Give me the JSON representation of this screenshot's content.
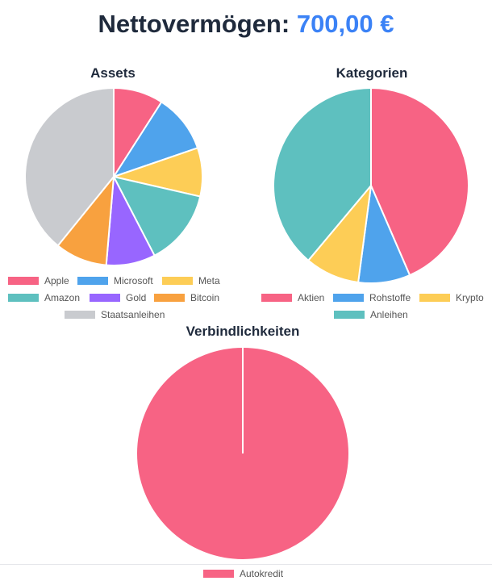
{
  "header": {
    "label": "Nettovermögen:",
    "value": "700,00 €"
  },
  "chart_data": [
    {
      "type": "pie",
      "title": "Assets",
      "legend_position": "bottom",
      "labels": [
        "Apple",
        "Microsoft",
        "Meta",
        "Amazon",
        "Gold",
        "Bitcoin",
        "Staatsanleihen"
      ],
      "values": [
        8.4,
        9.9,
        8.2,
        12.8,
        8.3,
        8.8,
        36.3
      ],
      "colors": [
        "#f76384",
        "#4fa3ec",
        "#fdcd56",
        "#5ec0bf",
        "#9866ff",
        "#f8a13f",
        "#c9cbcf"
      ]
    },
    {
      "type": "pie",
      "title": "Kategorien",
      "legend_position": "bottom",
      "labels": [
        "Aktien",
        "Rohstoffe",
        "Krypto",
        "Anleihen"
      ],
      "values": [
        43.5,
        8.6,
        9.0,
        38.9
      ],
      "colors": [
        "#f76384",
        "#4fa3ec",
        "#fdcd56",
        "#5ec0bf"
      ]
    },
    {
      "type": "pie",
      "title": "Verbindlichkeiten",
      "legend_position": "bottom",
      "labels": [
        "Autokredit"
      ],
      "values": [
        100
      ],
      "colors": [
        "#f76384"
      ]
    }
  ]
}
